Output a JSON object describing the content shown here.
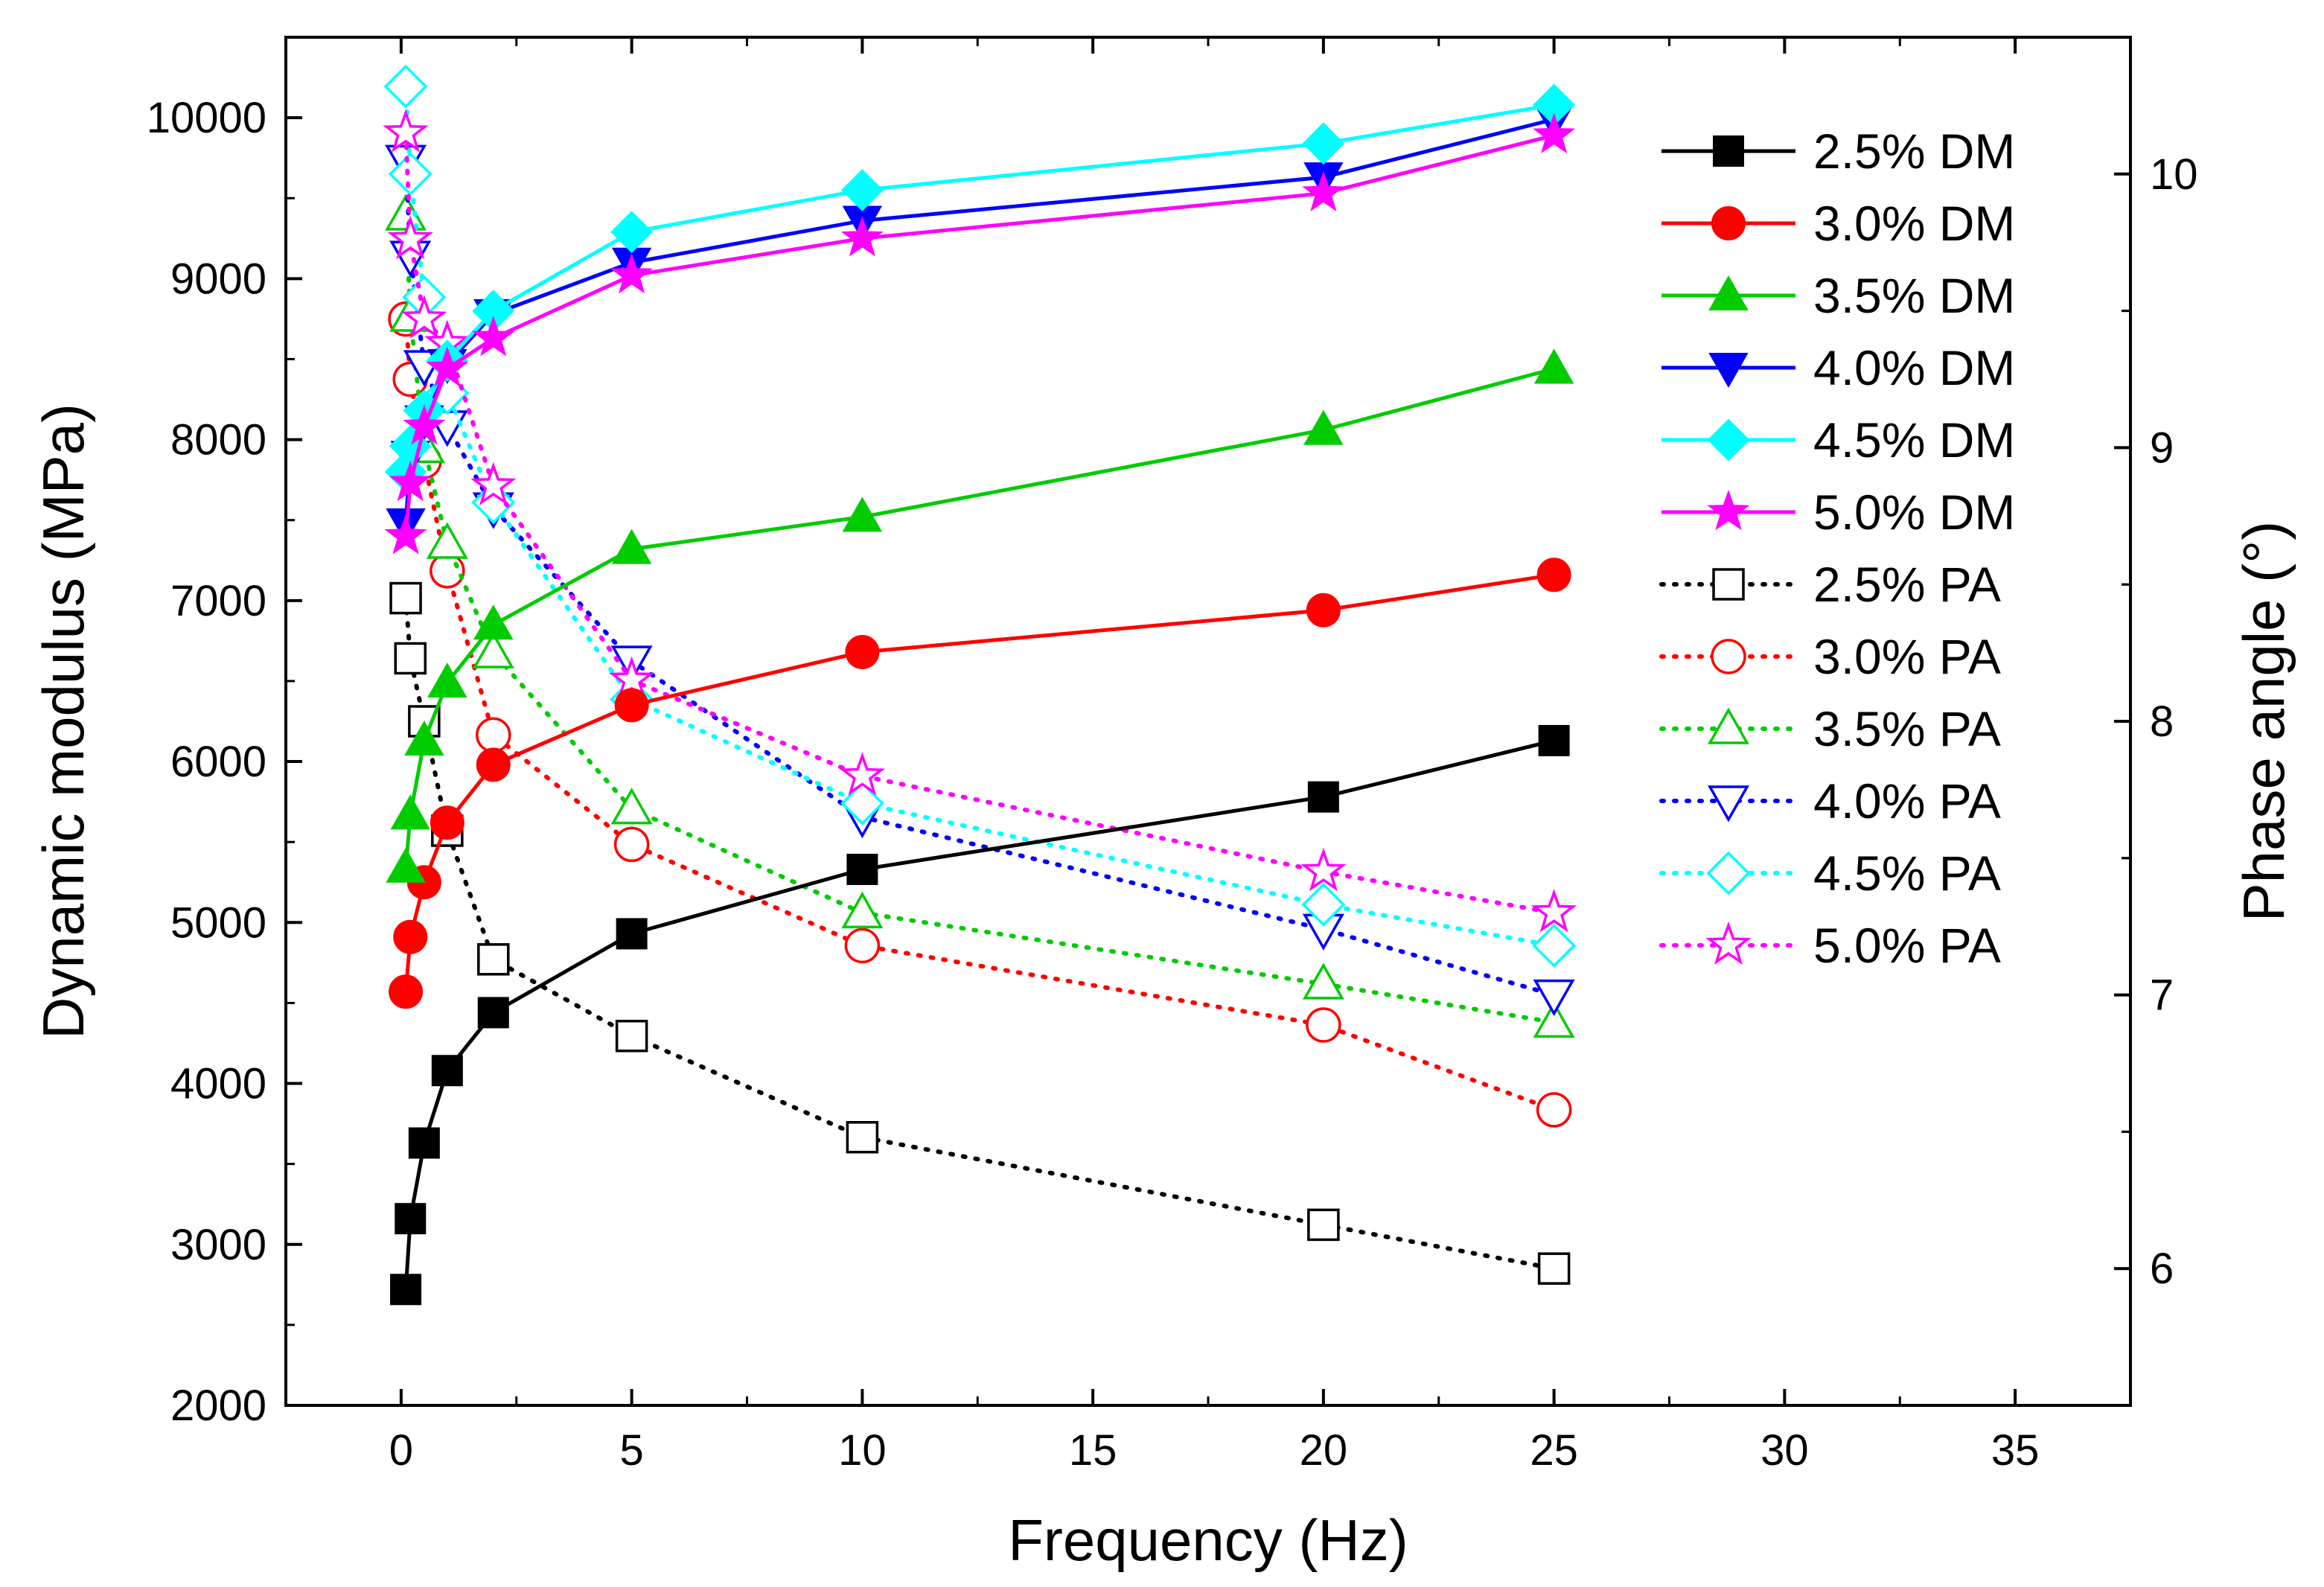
{
  "chart_data": {
    "type": "line",
    "title": "",
    "xlabel": "Frequency (Hz)",
    "ylabel": "Dynamic modulus (MPa)",
    "y2label": "Phase angle (°)",
    "xlim": [
      -2.5,
      37.5
    ],
    "ylim": [
      2000,
      10500
    ],
    "y2lim": [
      5.5,
      10.5
    ],
    "xticks": [
      0,
      5,
      10,
      15,
      20,
      25,
      30,
      35
    ],
    "xtick_labels": [
      "0",
      "5",
      "10",
      "15",
      "20",
      "25",
      "30",
      "35"
    ],
    "yticks": [
      2000,
      3000,
      4000,
      5000,
      6000,
      7000,
      8000,
      9000,
      10000
    ],
    "ytick_labels": [
      "2000",
      "3000",
      "4000",
      "5000",
      "6000",
      "7000",
      "8000",
      "9000",
      "10000"
    ],
    "y2ticks": [
      6,
      7,
      8,
      9,
      10
    ],
    "y2tick_labels": [
      "6",
      "7",
      "8",
      "9",
      "10"
    ],
    "grid": false,
    "legend_position": "top-right",
    "x": [
      0.1,
      0.2,
      0.5,
      1,
      2,
      5,
      10,
      20,
      25
    ],
    "series": [
      {
        "name": "2.5% DM",
        "axis": "left",
        "color": "#000000",
        "marker": "square",
        "filled": true,
        "dash": "solid",
        "values": [
          2720,
          3160,
          3630,
          4080,
          4440,
          4930,
          5330,
          5780,
          6130
        ]
      },
      {
        "name": "3.0% DM",
        "axis": "left",
        "color": "#ff0000",
        "marker": "circle",
        "filled": true,
        "dash": "solid",
        "values": [
          4570,
          4910,
          5250,
          5620,
          5980,
          6350,
          6680,
          6940,
          7160
        ]
      },
      {
        "name": "3.5% DM",
        "axis": "left",
        "color": "#00cc00",
        "marker": "triangle-up",
        "filled": true,
        "dash": "solid",
        "values": [
          5340,
          5670,
          6130,
          6490,
          6850,
          7320,
          7520,
          8060,
          8440
        ]
      },
      {
        "name": "4.0% DM",
        "axis": "left",
        "color": "#0000ff",
        "marker": "triangle-down",
        "filled": true,
        "dash": "solid",
        "values": [
          7480,
          7900,
          8120,
          8470,
          8780,
          9100,
          9360,
          9630,
          9990
        ]
      },
      {
        "name": "4.5% DM",
        "axis": "left",
        "color": "#00ffff",
        "marker": "diamond",
        "filled": true,
        "dash": "solid",
        "values": [
          7800,
          7960,
          8180,
          8490,
          8800,
          9290,
          9550,
          9840,
          10080
        ]
      },
      {
        "name": "5.0% DM",
        "axis": "left",
        "color": "#ff00ff",
        "marker": "star",
        "filled": true,
        "dash": "solid",
        "values": [
          7400,
          7730,
          8080,
          8440,
          8630,
          9020,
          9250,
          9530,
          9890
        ]
      },
      {
        "name": "2.5% PA",
        "axis": "right",
        "color": "#000000",
        "marker": "square",
        "filled": false,
        "dash": "dot",
        "values": [
          8.45,
          8.23,
          8.0,
          7.6,
          7.13,
          6.85,
          6.48,
          6.16,
          6.0
        ]
      },
      {
        "name": "3.0% PA",
        "axis": "right",
        "color": "#ff0000",
        "marker": "circle",
        "filled": false,
        "dash": "dot",
        "values": [
          9.47,
          9.25,
          8.95,
          8.55,
          7.95,
          7.55,
          7.18,
          6.89,
          6.58
        ]
      },
      {
        "name": "3.5% PA",
        "axis": "right",
        "color": "#00cc00",
        "marker": "triangle-up",
        "filled": false,
        "dash": "dot",
        "values": [
          9.85,
          9.48,
          9.0,
          8.65,
          8.25,
          7.68,
          7.3,
          7.04,
          6.9
        ]
      },
      {
        "name": "4.0% PA",
        "axis": "right",
        "color": "#0000ff",
        "marker": "triangle-down",
        "filled": false,
        "dash": "dot",
        "values": [
          10.05,
          9.7,
          9.3,
          9.08,
          8.78,
          8.22,
          7.65,
          7.24,
          7.0
        ]
      },
      {
        "name": "4.5% PA",
        "axis": "right",
        "color": "#00ffff",
        "marker": "diamond",
        "filled": false,
        "dash": "dot",
        "values": [
          10.32,
          10.0,
          9.55,
          9.2,
          8.8,
          8.08,
          7.7,
          7.33,
          7.18
        ]
      },
      {
        "name": "5.0% PA",
        "axis": "right",
        "color": "#ff00ff",
        "marker": "star",
        "filled": false,
        "dash": "dot",
        "values": [
          10.15,
          9.76,
          9.47,
          9.38,
          8.86,
          8.15,
          7.8,
          7.45,
          7.3
        ]
      }
    ]
  }
}
